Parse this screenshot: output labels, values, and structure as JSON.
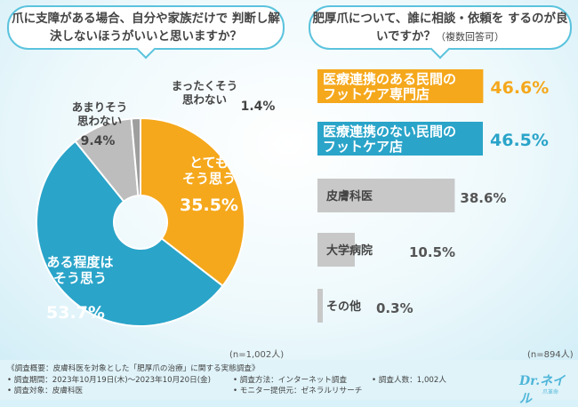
{
  "left_question": "爪に支障がある場合、自分や家族だけで 判断し解決しないほうがいいと思いますか？",
  "right_question_main": "肥厚爪について、誰に相談・依頼を するのが良いですか？",
  "right_question_note": "（複数回答可）",
  "left_n": "(n=1,002人)",
  "right_n": "(n=894人)",
  "chart_data": [
    {
      "type": "pie",
      "title": "爪に支障がある場合、自分や家族だけで判断し解決しないほうがいいと思いますか？",
      "donut": true,
      "slices": [
        {
          "label": "とても そう思う",
          "value": 35.5,
          "value_text": "35.5%",
          "color": "#f5a81c"
        },
        {
          "label": "ある程度は そう思う",
          "value": 53.7,
          "value_text": "53.7%",
          "color": "#2aa4c9"
        },
        {
          "label": "あまりそう 思わない",
          "value": 9.4,
          "value_text": "9.4%",
          "color": "#bdbdbd"
        },
        {
          "label": "まったくそう 思わない",
          "value": 1.4,
          "value_text": "1.4%",
          "color": "#9e9e9e"
        }
      ]
    },
    {
      "type": "bar",
      "orientation": "horizontal",
      "title": "肥厚爪について、誰に相談・依頼をするのが良いですか？（複数回答可）",
      "categories": [
        "医療連携のある民間の フットケア専門店",
        "医療連携のない民間の フットケア店",
        "皮膚科医",
        "大学病院",
        "その他"
      ],
      "values": [
        46.6,
        46.5,
        38.6,
        10.5,
        0.3
      ],
      "value_texts": [
        "46.6%",
        "46.5%",
        "38.6%",
        "10.5%",
        "0.3%"
      ],
      "colors": [
        "#f5a81c",
        "#2aa4c9",
        "#c8c8c8",
        "#c8c8c8",
        "#c8c8c8"
      ],
      "xlim": [
        0,
        50
      ]
    }
  ],
  "footer": {
    "overview": "《調査概要：皮膚科医を対象とした「肥厚爪の治療」に関する実態調査》",
    "period": "• 調査期間：2023年10月19日(木)〜2023年10月20日(金)",
    "target": "• 調査対象：皮膚科医",
    "method": "• 調査方法：インターネット調査",
    "provider": "• モニター提供元：ゼネラルリサーチ",
    "count": "• 調査人数：1,002人"
  },
  "logo": {
    "brand": "Dr.ネイル",
    "sub": "爪革命"
  }
}
